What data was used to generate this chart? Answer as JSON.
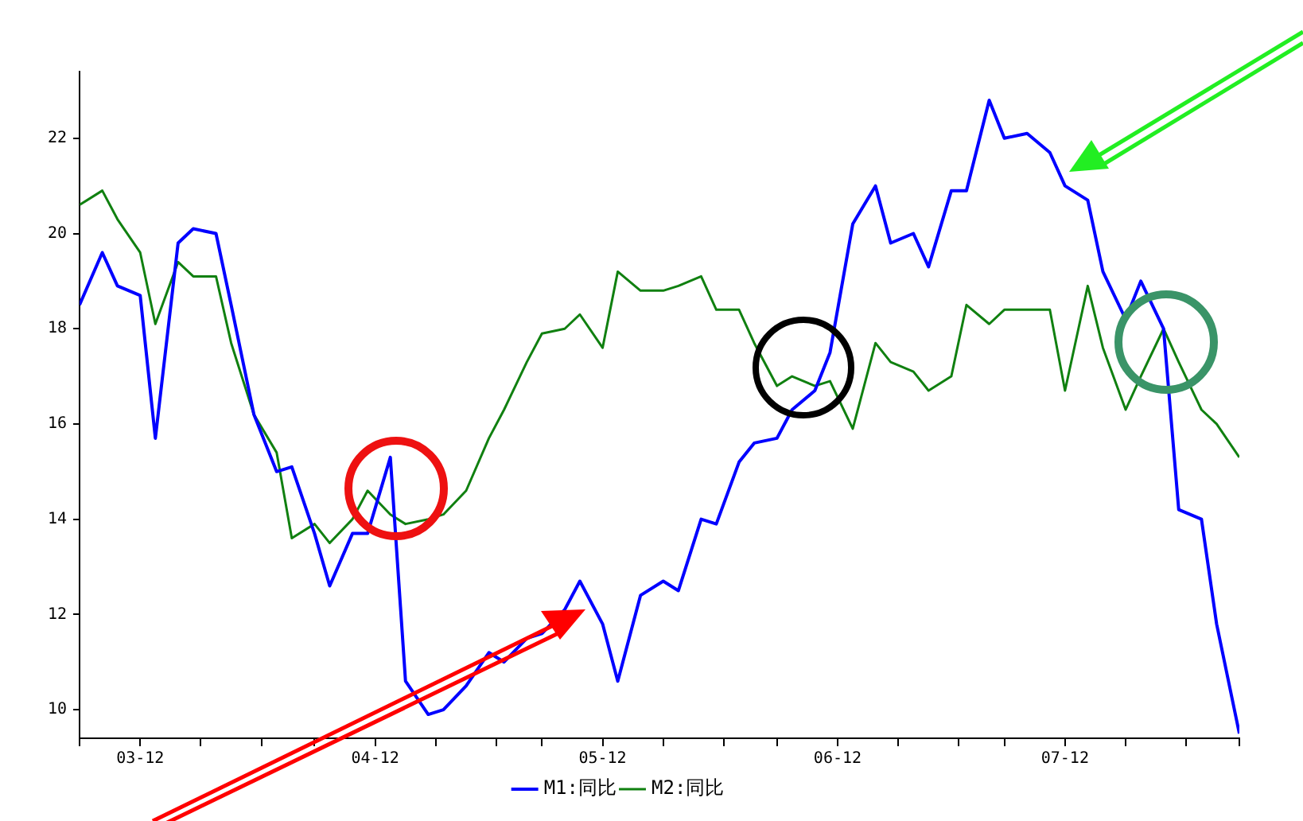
{
  "chart_data": {
    "type": "line",
    "x": [
      "--03-04",
      "--03-07",
      "--03-09",
      "--03-12",
      "--03-14",
      "--03-17",
      "--03-19",
      "--03-22",
      "--03-24",
      "--03-27",
      "--03-30",
      "--04-01",
      "--04-04",
      "--04-06",
      "--04-09",
      "--04-11",
      "--04-14",
      "--04-16",
      "--04-19",
      "--04-21",
      "--04-24",
      "--04-27",
      "--04-29",
      "--05-02",
      "--05-04",
      "--05-07",
      "--05-09",
      "--05-12",
      "--05-14",
      "--05-17",
      "--05-20",
      "--05-22",
      "--05-25",
      "--05-27",
      "--05-30",
      "--06-01",
      "--06-04",
      "--06-06",
      "--06-09",
      "--06-11",
      "--06-14",
      "--06-17",
      "--06-19",
      "--06-22",
      "--06-24",
      "--06-27",
      "--06-29",
      "--07-02",
      "--07-04",
      "--07-07",
      "--07-10",
      "--07-12",
      "--07-15",
      "--07-17",
      "--07-20",
      "--07-22",
      "--07-25",
      "--07-27",
      "--07-30",
      "--08-01",
      "--08-04"
    ],
    "series": [
      {
        "name": "M1:同比",
        "color": "#0000ff",
        "values": [
          18.5,
          19.6,
          18.9,
          18.7,
          15.7,
          19.8,
          20.1,
          20.0,
          18.5,
          16.2,
          15.0,
          15.1,
          13.7,
          12.6,
          13.7,
          13.7,
          15.3,
          10.6,
          9.9,
          10.0,
          10.5,
          11.2,
          11.0,
          11.5,
          11.6,
          12.1,
          12.7,
          11.8,
          10.6,
          12.4,
          12.7,
          12.5,
          14.0,
          13.9,
          15.2,
          15.6,
          15.7,
          16.3,
          16.7,
          17.5,
          20.2,
          21.0,
          19.8,
          20.0,
          19.3,
          20.9,
          20.9,
          22.8,
          22.0,
          22.1,
          21.7,
          21.0,
          20.7,
          19.2,
          18.2,
          19.0,
          18.0,
          14.2,
          14.0,
          11.8,
          9.5
        ]
      },
      {
        "name": "M2:同比",
        "color": "#108010",
        "values": [
          20.6,
          20.9,
          20.3,
          19.6,
          18.1,
          19.4,
          19.1,
          19.1,
          17.7,
          16.2,
          15.4,
          13.6,
          13.9,
          13.5,
          14.0,
          14.6,
          14.1,
          13.9,
          14.0,
          14.1,
          14.6,
          15.7,
          16.3,
          17.3,
          17.9,
          18.0,
          18.3,
          17.6,
          19.2,
          18.8,
          18.8,
          18.9,
          19.1,
          18.4,
          18.4,
          17.7,
          16.8,
          17.0,
          16.8,
          16.9,
          15.9,
          17.7,
          17.3,
          17.1,
          16.7,
          17.0,
          18.5,
          18.1,
          18.4,
          18.4,
          18.4,
          16.7,
          18.9,
          17.6,
          16.3,
          17.0,
          18.0,
          17.3,
          16.3,
          16.0,
          15.3
        ]
      }
    ],
    "xlim": [
      "--03-04",
      "--08-04"
    ],
    "xticks": [
      {
        "value": "--03-04",
        "label": null
      },
      {
        "value": "--03-12",
        "label": "03-12"
      },
      {
        "value": "--03-20",
        "label": null
      },
      {
        "value": "--03-28",
        "label": null
      },
      {
        "value": "--04-04",
        "label": null
      },
      {
        "value": "--04-12",
        "label": "04-12"
      },
      {
        "value": "--04-20",
        "label": null
      },
      {
        "value": "--04-28",
        "label": null
      },
      {
        "value": "--05-04",
        "label": null
      },
      {
        "value": "--05-12",
        "label": "05-12"
      },
      {
        "value": "--05-20",
        "label": null
      },
      {
        "value": "--05-28",
        "label": null
      },
      {
        "value": "--06-04",
        "label": null
      },
      {
        "value": "--06-12",
        "label": "06-12"
      },
      {
        "value": "--06-20",
        "label": null
      },
      {
        "value": "--06-28",
        "label": null
      },
      {
        "value": "--07-04",
        "label": null
      },
      {
        "value": "--07-12",
        "label": "07-12"
      },
      {
        "value": "--07-20",
        "label": null
      },
      {
        "value": "--07-28",
        "label": null
      },
      {
        "value": "--08-04",
        "label": null
      }
    ],
    "ylim": [
      9.4,
      23.4
    ],
    "yticks": [
      10,
      12,
      14,
      16,
      18,
      20,
      22
    ],
    "grid": false,
    "legend": "bottom"
  }
}
